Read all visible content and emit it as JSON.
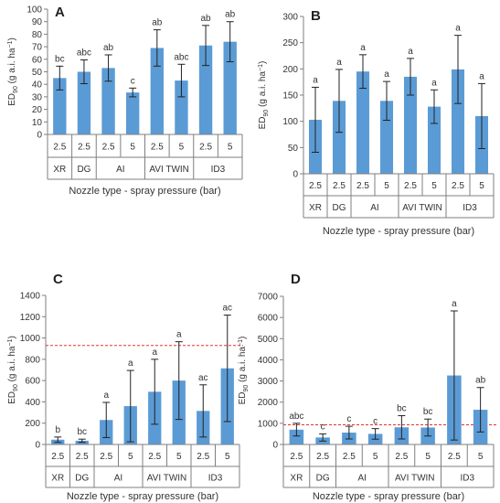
{
  "colors": {
    "bar": "#5b9bd5",
    "err": "#222222",
    "refline": "#e8302a",
    "axis": "#7f7f7f"
  },
  "shared": {
    "pressures": [
      "2.5",
      "2.5",
      "2.5",
      "5",
      "2.5",
      "5",
      "2.5",
      "5"
    ],
    "nozzle_groups": [
      {
        "label": "XR",
        "cols": 1
      },
      {
        "label": "DG",
        "cols": 1
      },
      {
        "label": "AI",
        "cols": 2
      },
      {
        "label": "AVI TWIN",
        "cols": 2
      },
      {
        "label": "ID3",
        "cols": 2
      }
    ],
    "xlabel": "Nozzle type - spray pressure (bar)",
    "ylabel_main": "ED",
    "ylabel_sub": "90",
    "ylabel_unit": " (g a.i. ha",
    "ylabel_sup": "−1",
    "ylabel_close": ")"
  },
  "chart_data": [
    {
      "panel": "A",
      "type": "bar",
      "categories": [
        "XR 2.5",
        "DG 2.5",
        "AI 2.5",
        "AI 5",
        "AVI TWIN 2.5",
        "AVI TWIN 5",
        "ID3 2.5",
        "ID3 5"
      ],
      "values": [
        45,
        50,
        53,
        33.5,
        69,
        43,
        71,
        74
      ],
      "errors": [
        9.5,
        9.5,
        10.5,
        3.5,
        14.5,
        13,
        16,
        16
      ],
      "letters": [
        "bc",
        "abc",
        "ab",
        "c",
        "ab",
        "abc",
        "ab",
        "ab"
      ],
      "ylim": [
        0,
        100
      ],
      "yticks": [
        0,
        10,
        20,
        30,
        40,
        50,
        60,
        70,
        80,
        90,
        100
      ],
      "ref_line": null
    },
    {
      "panel": "B",
      "type": "bar",
      "categories": [
        "XR 2.5",
        "DG 2.5",
        "AI 2.5",
        "AI 5",
        "AVI TWIN 2.5",
        "AVI TWIN 5",
        "ID3 2.5",
        "ID3 5"
      ],
      "values": [
        103,
        139,
        195,
        139,
        185,
        128,
        199,
        110
      ],
      "errors": [
        62,
        60,
        32,
        37,
        35,
        32,
        65,
        62
      ],
      "letters": [
        "a",
        "a",
        "a",
        "a",
        "a",
        "a",
        "a",
        "a"
      ],
      "ylim": [
        0,
        300
      ],
      "yticks": [
        0,
        50,
        100,
        150,
        200,
        250,
        300
      ],
      "ref_line": null
    },
    {
      "panel": "C",
      "type": "bar",
      "categories": [
        "XR 2.5",
        "DG 2.5",
        "AI 2.5",
        "AI 5",
        "AVI TWIN 2.5",
        "AVI TWIN 5",
        "ID3 2.5",
        "ID3 5"
      ],
      "values": [
        45,
        35,
        230,
        360,
        495,
        600,
        315,
        715
      ],
      "errors": [
        25,
        15,
        165,
        335,
        305,
        365,
        245,
        500
      ],
      "letters": [
        "b",
        "bc",
        "a",
        "a",
        "a",
        "a",
        "ac",
        "ac"
      ],
      "ylim": [
        0,
        1400
      ],
      "yticks": [
        0,
        200,
        400,
        600,
        800,
        1000,
        1200,
        1400
      ],
      "ref_line": 930
    },
    {
      "panel": "D",
      "type": "bar",
      "categories": [
        "XR 2.5",
        "DG 2.5",
        "AI 2.5",
        "AI 5",
        "AVI TWIN 2.5",
        "AVI TWIN 5",
        "ID3 2.5",
        "ID3 5"
      ],
      "values": [
        700,
        330,
        560,
        500,
        810,
        800,
        3260,
        1640
      ],
      "errors": [
        300,
        170,
        300,
        250,
        550,
        400,
        3050,
        1050
      ],
      "letters": [
        "abc",
        "c",
        "c",
        "c",
        "bc",
        "bc",
        "a",
        "ab"
      ],
      "ylim": [
        0,
        7000
      ],
      "yticks": [
        0,
        1000,
        2000,
        3000,
        4000,
        5000,
        6000,
        7000
      ],
      "ref_line": 930
    }
  ]
}
